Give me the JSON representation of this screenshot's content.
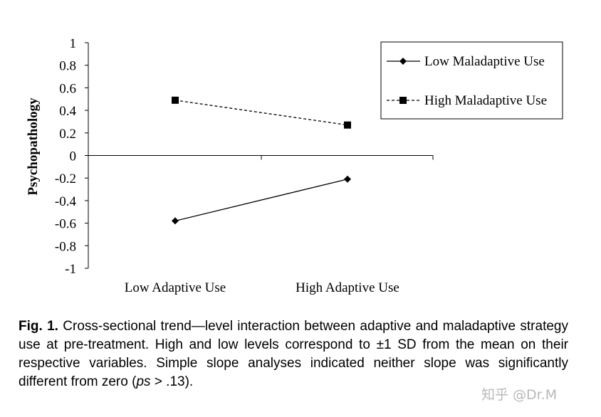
{
  "chart_data": {
    "type": "line",
    "categories": [
      "Low Adaptive Use",
      "High Adaptive Use"
    ],
    "series": [
      {
        "name": "Low Maladaptive Use",
        "values": [
          -0.58,
          -0.21
        ],
        "marker": "diamond",
        "line": "solid"
      },
      {
        "name": "High Maladaptive Use",
        "values": [
          0.49,
          0.27
        ],
        "marker": "square",
        "line": "dashed"
      }
    ],
    "ylabel": "Psychopathology",
    "ylim": [
      -1,
      1
    ],
    "yticks": [
      1,
      0.8,
      0.6,
      0.4,
      0.2,
      0,
      -0.2,
      -0.4,
      -0.6,
      -0.8,
      -1
    ],
    "ytick_labels": [
      "1",
      "0.8",
      "0.6",
      "0.4",
      "0.2",
      "0",
      "-0.2",
      "-0.4",
      "-0.6",
      "-0.8",
      "-1"
    ],
    "grid": false,
    "legend_position": "top-right"
  },
  "caption": {
    "label": "Fig. 1.",
    "text": "Cross-sectional trend—level interaction between adaptive and maladaptive strategy use at pre-treatment. High and low levels correspond to ±1 SD from the mean on their respective variables. Simple slope analyses indicated neither slope was significantly different from zero (",
    "italic": "ps",
    "tail": " > .13)."
  },
  "watermark": "知乎 @Dr.M"
}
